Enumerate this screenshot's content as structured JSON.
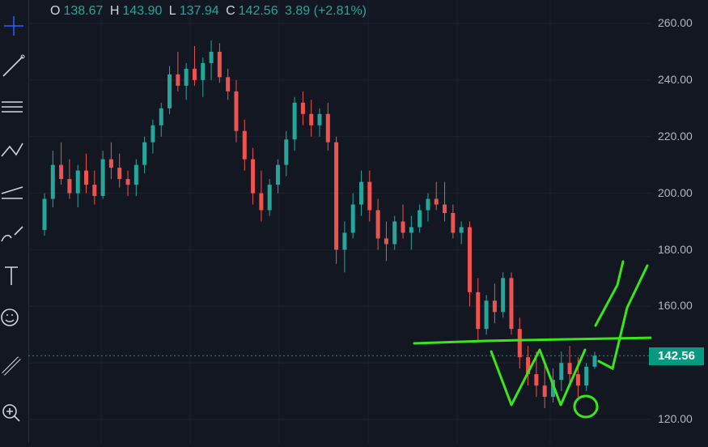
{
  "ohlc": {
    "o_label": "O",
    "o_value": "138.67",
    "h_label": "H",
    "h_value": "143.90",
    "l_label": "L",
    "l_value": "137.94",
    "c_label": "C",
    "c_value": "142.56",
    "change": "3.89 (+2.81%)"
  },
  "price_axis": {
    "ticks": [
      "260.00",
      "240.00",
      "220.00",
      "200.00",
      "180.00",
      "160.00",
      "120.00"
    ],
    "last_price": "142.56"
  },
  "toolbar": {
    "tools": [
      "crosshair-icon",
      "trendline-icon",
      "fib-retracement-icon",
      "pattern-icon",
      "forecast-icon",
      "brush-icon",
      "text-icon",
      "emoji-icon",
      "ruler-icon",
      "zoom-in-icon"
    ]
  },
  "colors": {
    "background": "#131722",
    "up": "#26a69a",
    "down": "#ef5350",
    "annotation": "#39e61a",
    "last_price_badge": "#089981"
  },
  "chart_data": {
    "type": "candlestick",
    "ylim": [
      115,
      265
    ],
    "last_price": 142.56,
    "candles": [
      {
        "o": 187,
        "h": 200,
        "l": 185,
        "c": 198
      },
      {
        "o": 198,
        "h": 215,
        "l": 195,
        "c": 210
      },
      {
        "o": 210,
        "h": 218,
        "l": 203,
        "c": 205
      },
      {
        "o": 205,
        "h": 212,
        "l": 198,
        "c": 200
      },
      {
        "o": 200,
        "h": 210,
        "l": 195,
        "c": 208
      },
      {
        "o": 208,
        "h": 214,
        "l": 200,
        "c": 203
      },
      {
        "o": 203,
        "h": 208,
        "l": 196,
        "c": 199
      },
      {
        "o": 199,
        "h": 215,
        "l": 198,
        "c": 212
      },
      {
        "o": 212,
        "h": 218,
        "l": 205,
        "c": 209
      },
      {
        "o": 209,
        "h": 214,
        "l": 202,
        "c": 205
      },
      {
        "o": 205,
        "h": 208,
        "l": 199,
        "c": 203
      },
      {
        "o": 203,
        "h": 212,
        "l": 199,
        "c": 210
      },
      {
        "o": 210,
        "h": 220,
        "l": 207,
        "c": 218
      },
      {
        "o": 218,
        "h": 226,
        "l": 214,
        "c": 224
      },
      {
        "o": 224,
        "h": 232,
        "l": 220,
        "c": 230
      },
      {
        "o": 230,
        "h": 245,
        "l": 228,
        "c": 242
      },
      {
        "o": 242,
        "h": 250,
        "l": 236,
        "c": 238
      },
      {
        "o": 238,
        "h": 246,
        "l": 233,
        "c": 244
      },
      {
        "o": 244,
        "h": 252,
        "l": 238,
        "c": 240
      },
      {
        "o": 240,
        "h": 248,
        "l": 234,
        "c": 246
      },
      {
        "o": 246,
        "h": 254,
        "l": 240,
        "c": 250
      },
      {
        "o": 250,
        "h": 253,
        "l": 239,
        "c": 241
      },
      {
        "o": 241,
        "h": 244,
        "l": 233,
        "c": 236
      },
      {
        "o": 236,
        "h": 240,
        "l": 218,
        "c": 222
      },
      {
        "o": 222,
        "h": 226,
        "l": 208,
        "c": 212
      },
      {
        "o": 212,
        "h": 216,
        "l": 196,
        "c": 200
      },
      {
        "o": 200,
        "h": 208,
        "l": 190,
        "c": 194
      },
      {
        "o": 194,
        "h": 205,
        "l": 192,
        "c": 203
      },
      {
        "o": 203,
        "h": 212,
        "l": 200,
        "c": 210
      },
      {
        "o": 210,
        "h": 222,
        "l": 206,
        "c": 219
      },
      {
        "o": 219,
        "h": 234,
        "l": 215,
        "c": 232
      },
      {
        "o": 232,
        "h": 236,
        "l": 224,
        "c": 228
      },
      {
        "o": 228,
        "h": 233,
        "l": 220,
        "c": 224
      },
      {
        "o": 224,
        "h": 230,
        "l": 220,
        "c": 228
      },
      {
        "o": 228,
        "h": 232,
        "l": 215,
        "c": 218
      },
      {
        "o": 218,
        "h": 220,
        "l": 175,
        "c": 180
      },
      {
        "o": 180,
        "h": 190,
        "l": 172,
        "c": 186
      },
      {
        "o": 186,
        "h": 200,
        "l": 184,
        "c": 196
      },
      {
        "o": 196,
        "h": 208,
        "l": 192,
        "c": 204
      },
      {
        "o": 204,
        "h": 208,
        "l": 190,
        "c": 194
      },
      {
        "o": 194,
        "h": 198,
        "l": 180,
        "c": 184
      },
      {
        "o": 184,
        "h": 190,
        "l": 176,
        "c": 182
      },
      {
        "o": 182,
        "h": 192,
        "l": 180,
        "c": 190
      },
      {
        "o": 190,
        "h": 196,
        "l": 184,
        "c": 186
      },
      {
        "o": 186,
        "h": 192,
        "l": 180,
        "c": 188
      },
      {
        "o": 188,
        "h": 196,
        "l": 186,
        "c": 194
      },
      {
        "o": 194,
        "h": 200,
        "l": 190,
        "c": 198
      },
      {
        "o": 198,
        "h": 204,
        "l": 194,
        "c": 196
      },
      {
        "o": 196,
        "h": 204,
        "l": 190,
        "c": 193
      },
      {
        "o": 193,
        "h": 196,
        "l": 184,
        "c": 186
      },
      {
        "o": 186,
        "h": 190,
        "l": 182,
        "c": 188
      },
      {
        "o": 188,
        "h": 190,
        "l": 160,
        "c": 165
      },
      {
        "o": 165,
        "h": 170,
        "l": 148,
        "c": 152
      },
      {
        "o": 152,
        "h": 164,
        "l": 150,
        "c": 162
      },
      {
        "o": 162,
        "h": 168,
        "l": 154,
        "c": 158
      },
      {
        "o": 158,
        "h": 172,
        "l": 156,
        "c": 170
      },
      {
        "o": 170,
        "h": 172,
        "l": 150,
        "c": 152
      },
      {
        "o": 152,
        "h": 156,
        "l": 138,
        "c": 142
      },
      {
        "o": 142,
        "h": 146,
        "l": 132,
        "c": 136
      },
      {
        "o": 136,
        "h": 144,
        "l": 128,
        "c": 132
      },
      {
        "o": 132,
        "h": 140,
        "l": 124,
        "c": 128
      },
      {
        "o": 128,
        "h": 138,
        "l": 126,
        "c": 134
      },
      {
        "o": 134,
        "h": 144,
        "l": 130,
        "c": 140
      },
      {
        "o": 140,
        "h": 146,
        "l": 132,
        "c": 136
      },
      {
        "o": 136,
        "h": 142,
        "l": 128,
        "c": 132
      },
      {
        "o": 132,
        "h": 140,
        "l": 130,
        "c": 138.67
      },
      {
        "o": 138.67,
        "h": 143.9,
        "l": 137.94,
        "c": 142.56
      }
    ]
  }
}
